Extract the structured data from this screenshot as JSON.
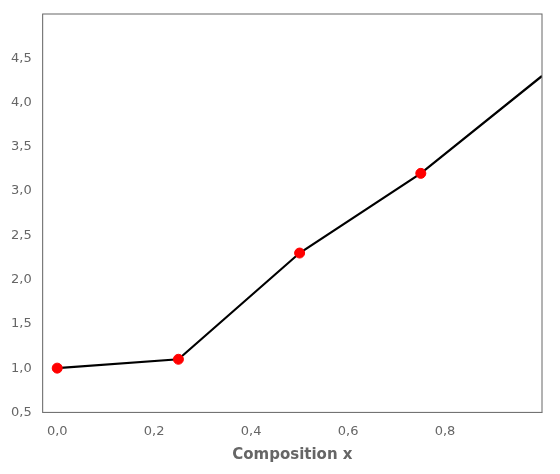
{
  "chart_data": {
    "type": "line",
    "xlabel": "Composition x",
    "series": [
      {
        "type": "line",
        "color": "#000000",
        "line_style": "solid",
        "x": [
          0.0,
          0.25,
          0.5,
          0.75,
          1.0
        ],
        "values": [
          1.0,
          1.1,
          2.3,
          3.2,
          4.3
        ]
      },
      {
        "type": "scatter",
        "color": "#ff0000",
        "marker": "circle",
        "x": [
          0.0,
          0.25,
          0.5,
          0.75
        ],
        "values": [
          1.0,
          1.1,
          2.3,
          3.2
        ]
      }
    ],
    "xlim": [
      -0.03,
      1.0
    ],
    "ylim": [
      0.5,
      5.0
    ],
    "xticks": [
      {
        "value": 0.0,
        "label": "0,0"
      },
      {
        "value": 0.2,
        "label": "0,2"
      },
      {
        "value": 0.4,
        "label": "0,4"
      },
      {
        "value": 0.6,
        "label": "0,6"
      },
      {
        "value": 0.8,
        "label": "0,8"
      }
    ],
    "yticks": [
      {
        "value": 0.5,
        "label": "0,5"
      },
      {
        "value": 1.0,
        "label": "1,0"
      },
      {
        "value": 1.5,
        "label": "1,5"
      },
      {
        "value": 2.0,
        "label": "2,0"
      },
      {
        "value": 2.5,
        "label": "2,5"
      },
      {
        "value": 3.0,
        "label": "3,0"
      },
      {
        "value": 3.5,
        "label": "3,5"
      },
      {
        "value": 4.0,
        "label": "4,0"
      },
      {
        "value": 4.5,
        "label": "4,5"
      }
    ],
    "grid": false
  }
}
